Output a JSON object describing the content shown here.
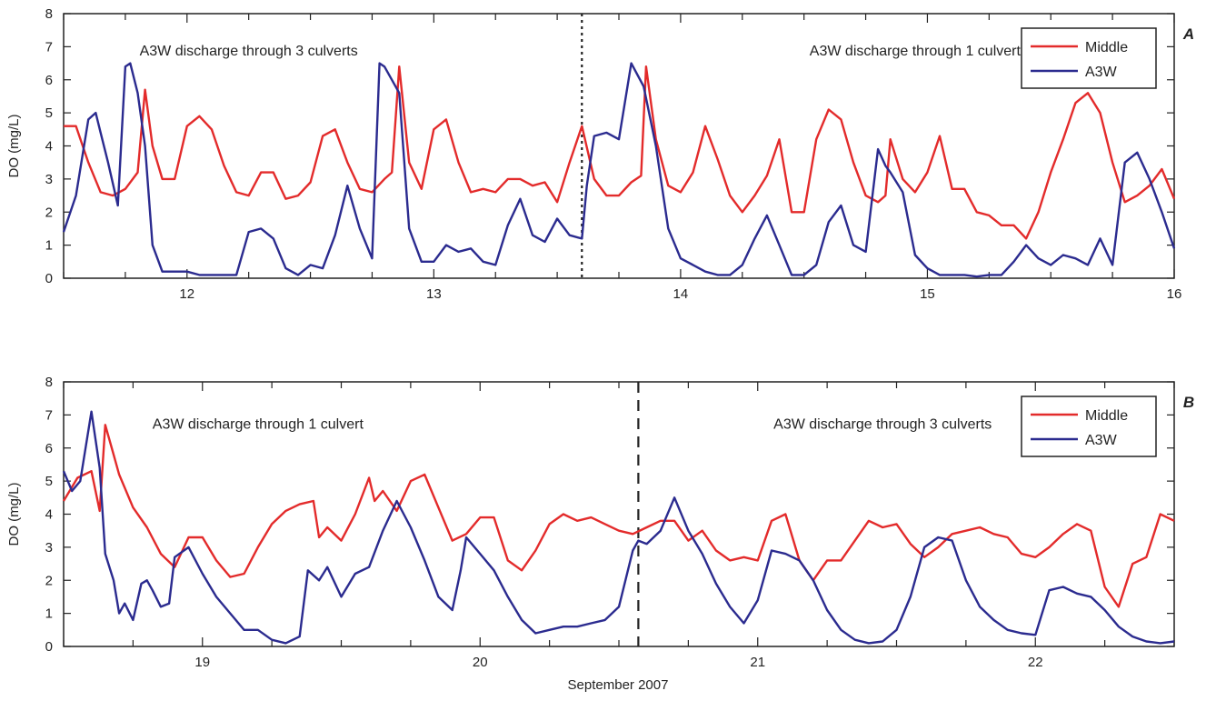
{
  "colors": {
    "middle": "#e32b2b",
    "a3w": "#2b2b8f",
    "axis": "#222222"
  },
  "xlabel": "September 2007",
  "chart_data": [
    {
      "type": "line",
      "panel": "A",
      "ylabel": "DO (mg/L)",
      "xlim": [
        11.5,
        16
      ],
      "ylim": [
        0,
        8
      ],
      "xticks": [
        12,
        13,
        14,
        15,
        16
      ],
      "yticks": [
        0,
        1,
        2,
        3,
        4,
        5,
        6,
        7,
        8
      ],
      "legend_position": "top-right",
      "divider": {
        "x": 13.6,
        "style": "dotted"
      },
      "annotations": [
        {
          "text": "A3W discharge through 3 culverts",
          "x": 12.25,
          "y": 6.9
        },
        {
          "text": "A3W discharge through 1 culvert",
          "x": 14.95,
          "y": 6.9
        }
      ],
      "series": [
        {
          "name": "Middle",
          "color_key": "middle",
          "x": [
            11.5,
            11.55,
            11.6,
            11.65,
            11.7,
            11.75,
            11.8,
            11.83,
            11.86,
            11.9,
            11.95,
            12.0,
            12.05,
            12.1,
            12.15,
            12.2,
            12.25,
            12.3,
            12.35,
            12.4,
            12.45,
            12.5,
            12.55,
            12.6,
            12.65,
            12.7,
            12.75,
            12.8,
            12.83,
            12.86,
            12.9,
            12.95,
            13.0,
            13.05,
            13.1,
            13.15,
            13.2,
            13.25,
            13.3,
            13.35,
            13.4,
            13.45,
            13.5,
            13.55,
            13.6,
            13.65,
            13.7,
            13.75,
            13.8,
            13.84,
            13.86,
            13.9,
            13.95,
            14.0,
            14.05,
            14.1,
            14.15,
            14.2,
            14.25,
            14.3,
            14.35,
            14.4,
            14.45,
            14.5,
            14.55,
            14.6,
            14.65,
            14.7,
            14.75,
            14.8,
            14.83,
            14.85,
            14.9,
            14.95,
            15.0,
            15.05,
            15.1,
            15.15,
            15.2,
            15.25,
            15.3,
            15.35,
            15.4,
            15.45,
            15.5,
            15.55,
            15.6,
            15.65,
            15.7,
            15.75,
            15.8,
            15.85,
            15.9,
            15.95,
            16.0
          ],
          "y": [
            4.6,
            4.6,
            3.5,
            2.6,
            2.5,
            2.7,
            3.2,
            5.7,
            4.0,
            3.0,
            3.0,
            4.6,
            4.9,
            4.5,
            3.4,
            2.6,
            2.5,
            3.2,
            3.2,
            2.4,
            2.5,
            2.9,
            4.3,
            4.5,
            3.5,
            2.7,
            2.6,
            3.0,
            3.2,
            6.4,
            3.5,
            2.7,
            4.5,
            4.8,
            3.5,
            2.6,
            2.7,
            2.6,
            3.0,
            3.0,
            2.8,
            2.9,
            2.3,
            3.5,
            4.6,
            3.0,
            2.5,
            2.5,
            2.9,
            3.1,
            6.4,
            4.2,
            2.8,
            2.6,
            3.2,
            4.6,
            3.6,
            2.5,
            2.0,
            2.5,
            3.1,
            4.2,
            2.0,
            2.0,
            4.2,
            5.1,
            4.8,
            3.5,
            2.5,
            2.3,
            2.5,
            4.2,
            3.0,
            2.6,
            3.2,
            4.3,
            2.7,
            2.7,
            2.0,
            1.9,
            1.6,
            1.6,
            1.2,
            2.0,
            3.2,
            4.2,
            5.3,
            5.6,
            5.0,
            3.5,
            2.3,
            2.5,
            2.8,
            3.3,
            2.4
          ]
        },
        {
          "name": "A3W",
          "color_key": "a3w",
          "x": [
            11.5,
            11.55,
            11.6,
            11.63,
            11.65,
            11.68,
            11.72,
            11.75,
            11.77,
            11.8,
            11.83,
            11.86,
            11.9,
            11.95,
            12.0,
            12.05,
            12.1,
            12.15,
            12.2,
            12.25,
            12.3,
            12.35,
            12.4,
            12.45,
            12.5,
            12.55,
            12.6,
            12.65,
            12.7,
            12.75,
            12.78,
            12.8,
            12.83,
            12.86,
            12.9,
            12.95,
            13.0,
            13.05,
            13.1,
            13.15,
            13.2,
            13.25,
            13.3,
            13.35,
            13.4,
            13.45,
            13.5,
            13.55,
            13.6,
            13.62,
            13.65,
            13.7,
            13.75,
            13.8,
            13.85,
            13.9,
            13.95,
            14.0,
            14.05,
            14.1,
            14.15,
            14.2,
            14.25,
            14.3,
            14.35,
            14.4,
            14.45,
            14.5,
            14.55,
            14.6,
            14.65,
            14.7,
            14.75,
            14.8,
            14.83,
            14.85,
            14.9,
            14.95,
            15.0,
            15.05,
            15.1,
            15.15,
            15.2,
            15.25,
            15.3,
            15.35,
            15.4,
            15.45,
            15.5,
            15.55,
            15.6,
            15.65,
            15.7,
            15.75,
            15.8,
            15.85,
            15.9,
            15.95,
            16.0
          ],
          "y": [
            1.4,
            2.5,
            4.8,
            5.0,
            4.4,
            3.5,
            2.2,
            6.4,
            6.5,
            5.6,
            4.0,
            1.0,
            0.2,
            0.2,
            0.2,
            0.1,
            0.1,
            0.1,
            0.1,
            1.4,
            1.5,
            1.2,
            0.3,
            0.1,
            0.4,
            0.3,
            1.3,
            2.8,
            1.5,
            0.6,
            6.5,
            6.4,
            6.0,
            5.6,
            1.5,
            0.5,
            0.5,
            1.0,
            0.8,
            0.9,
            0.5,
            0.4,
            1.6,
            2.4,
            1.3,
            1.1,
            1.8,
            1.3,
            1.2,
            2.8,
            4.3,
            4.4,
            4.2,
            6.5,
            5.8,
            4.0,
            1.5,
            0.6,
            0.4,
            0.2,
            0.1,
            0.1,
            0.4,
            1.2,
            1.9,
            1.0,
            0.1,
            0.1,
            0.4,
            1.7,
            2.2,
            1.0,
            0.8,
            3.9,
            3.4,
            3.2,
            2.6,
            0.7,
            0.3,
            0.1,
            0.1,
            0.1,
            0.05,
            0.1,
            0.1,
            0.5,
            1.0,
            0.6,
            0.4,
            0.7,
            0.6,
            0.4,
            1.2,
            0.4,
            3.5,
            3.8,
            3.0,
            2.0,
            0.9
          ]
        }
      ]
    },
    {
      "type": "line",
      "panel": "B",
      "ylabel": "DO (mg/L)",
      "xlim": [
        18.5,
        22.5
      ],
      "ylim": [
        0,
        8
      ],
      "xticks": [
        19,
        20,
        21,
        22
      ],
      "yticks": [
        0,
        1,
        2,
        3,
        4,
        5,
        6,
        7,
        8
      ],
      "legend_position": "top-right",
      "divider": {
        "x": 20.57,
        "style": "dashed"
      },
      "annotations": [
        {
          "text": "A3W discharge through 1 culvert",
          "x": 19.2,
          "y": 6.75
        },
        {
          "text": "A3W discharge through 3 culverts",
          "x": 21.45,
          "y": 6.75
        }
      ],
      "series": [
        {
          "name": "Middle",
          "color_key": "middle",
          "x": [
            18.5,
            18.55,
            18.6,
            18.63,
            18.65,
            18.68,
            18.7,
            18.75,
            18.8,
            18.85,
            18.9,
            18.95,
            19.0,
            19.05,
            19.1,
            19.15,
            19.2,
            19.25,
            19.3,
            19.35,
            19.4,
            19.42,
            19.45,
            19.5,
            19.55,
            19.6,
            19.62,
            19.65,
            19.7,
            19.75,
            19.8,
            19.85,
            19.9,
            19.95,
            20.0,
            20.05,
            20.1,
            20.15,
            20.2,
            20.25,
            20.3,
            20.35,
            20.4,
            20.45,
            20.5,
            20.55,
            20.6,
            20.65,
            20.7,
            20.75,
            20.8,
            20.85,
            20.9,
            20.95,
            21.0,
            21.05,
            21.1,
            21.15,
            21.2,
            21.25,
            21.3,
            21.35,
            21.4,
            21.45,
            21.5,
            21.55,
            21.6,
            21.65,
            21.7,
            21.75,
            21.8,
            21.85,
            21.9,
            21.95,
            22.0,
            22.05,
            22.1,
            22.15,
            22.2,
            22.25,
            22.3,
            22.35,
            22.4,
            22.45,
            22.5
          ],
          "y": [
            4.4,
            5.1,
            5.3,
            4.1,
            6.7,
            5.8,
            5.2,
            4.2,
            3.6,
            2.8,
            2.4,
            3.3,
            3.3,
            2.6,
            2.1,
            2.2,
            3.0,
            3.7,
            4.1,
            4.3,
            4.4,
            3.3,
            3.6,
            3.2,
            4.0,
            5.1,
            4.4,
            4.7,
            4.1,
            5.0,
            5.2,
            4.2,
            3.2,
            3.4,
            3.9,
            3.9,
            2.6,
            2.3,
            2.9,
            3.7,
            4.0,
            3.8,
            3.9,
            3.7,
            3.5,
            3.4,
            3.6,
            3.8,
            3.8,
            3.2,
            3.5,
            2.9,
            2.6,
            2.7,
            2.6,
            3.8,
            4.0,
            2.6,
            2.0,
            2.6,
            2.6,
            3.2,
            3.8,
            3.6,
            3.7,
            3.1,
            2.7,
            3.0,
            3.4,
            3.5,
            3.6,
            3.4,
            3.3,
            2.8,
            2.7,
            3.0,
            3.4,
            3.7,
            3.5,
            1.8,
            1.2,
            2.5,
            2.7,
            4.0,
            3.8
          ]
        },
        {
          "name": "A3W",
          "color_key": "a3w",
          "x": [
            18.5,
            18.53,
            18.56,
            18.6,
            18.63,
            18.65,
            18.68,
            18.7,
            18.72,
            18.75,
            18.78,
            18.8,
            18.82,
            18.85,
            18.88,
            18.9,
            18.95,
            19.0,
            19.05,
            19.1,
            19.15,
            19.2,
            19.25,
            19.3,
            19.35,
            19.38,
            19.42,
            19.45,
            19.5,
            19.55,
            19.6,
            19.65,
            19.7,
            19.75,
            19.8,
            19.85,
            19.9,
            19.93,
            19.95,
            20.0,
            20.05,
            20.1,
            20.15,
            20.2,
            20.25,
            20.3,
            20.35,
            20.4,
            20.45,
            20.5,
            20.55,
            20.57,
            20.6,
            20.65,
            20.7,
            20.75,
            20.8,
            20.85,
            20.9,
            20.95,
            21.0,
            21.05,
            21.1,
            21.15,
            21.2,
            21.25,
            21.3,
            21.35,
            21.4,
            21.45,
            21.5,
            21.55,
            21.6,
            21.65,
            21.7,
            21.75,
            21.8,
            21.85,
            21.9,
            21.95,
            22.0,
            22.05,
            22.1,
            22.15,
            22.2,
            22.25,
            22.3,
            22.35,
            22.4,
            22.45,
            22.5
          ],
          "y": [
            5.3,
            4.7,
            5.0,
            7.1,
            5.4,
            2.8,
            2.0,
            1.0,
            1.3,
            0.8,
            1.9,
            2.0,
            1.7,
            1.2,
            1.3,
            2.7,
            3.0,
            2.2,
            1.5,
            1.0,
            0.5,
            0.5,
            0.2,
            0.1,
            0.3,
            2.3,
            2.0,
            2.4,
            1.5,
            2.2,
            2.4,
            3.5,
            4.4,
            3.6,
            2.6,
            1.5,
            1.1,
            2.3,
            3.3,
            2.8,
            2.3,
            1.5,
            0.8,
            0.4,
            0.5,
            0.6,
            0.6,
            0.7,
            0.8,
            1.2,
            2.9,
            3.2,
            3.1,
            3.5,
            4.5,
            3.5,
            2.8,
            1.9,
            1.2,
            0.7,
            1.4,
            2.9,
            2.8,
            2.6,
            2.0,
            1.1,
            0.5,
            0.2,
            0.1,
            0.15,
            0.5,
            1.5,
            3.0,
            3.3,
            3.2,
            2.0,
            1.2,
            0.8,
            0.5,
            0.4,
            0.35,
            1.7,
            1.8,
            1.6,
            1.5,
            1.1,
            0.6,
            0.3,
            0.15,
            0.1,
            0.15
          ]
        }
      ]
    }
  ]
}
